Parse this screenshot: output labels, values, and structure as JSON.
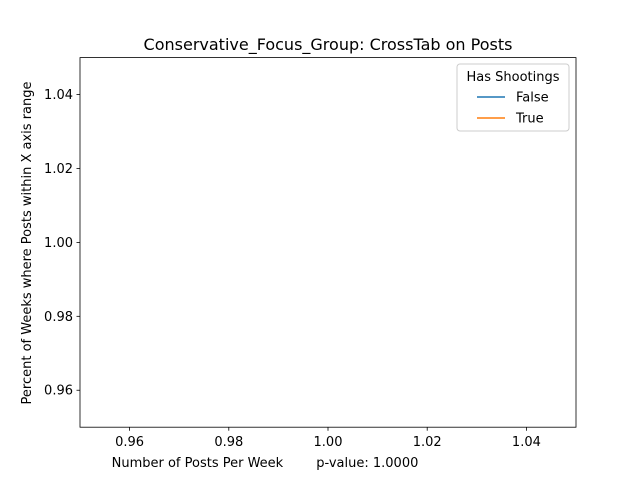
{
  "chart_data": {
    "type": "line",
    "title": "Conservative_Focus_Group: CrossTab on Posts",
    "xlabel": "Number of Posts Per Week        p-value: 1.0000",
    "ylabel": "Percent of Weeks where Posts within X axis range",
    "xlim": [
      0.95,
      1.05
    ],
    "ylim": [
      0.95,
      1.05
    ],
    "x_ticks": [
      0.96,
      0.98,
      1.0,
      1.02,
      1.04
    ],
    "x_tick_labels": [
      "0.96",
      "0.98",
      "1.00",
      "1.02",
      "1.04"
    ],
    "y_ticks": [
      0.96,
      0.98,
      1.0,
      1.02,
      1.04
    ],
    "y_tick_labels": [
      "0.96",
      "0.98",
      "1.00",
      "1.02",
      "1.04"
    ],
    "grid": false,
    "legend": {
      "title": "Has Shootings",
      "placement": "top-right"
    },
    "series": [
      {
        "name": "False",
        "color": "#1f77b4",
        "x": [],
        "values": []
      },
      {
        "name": "True",
        "color": "#ff7f0e",
        "x": [],
        "values": []
      }
    ]
  }
}
